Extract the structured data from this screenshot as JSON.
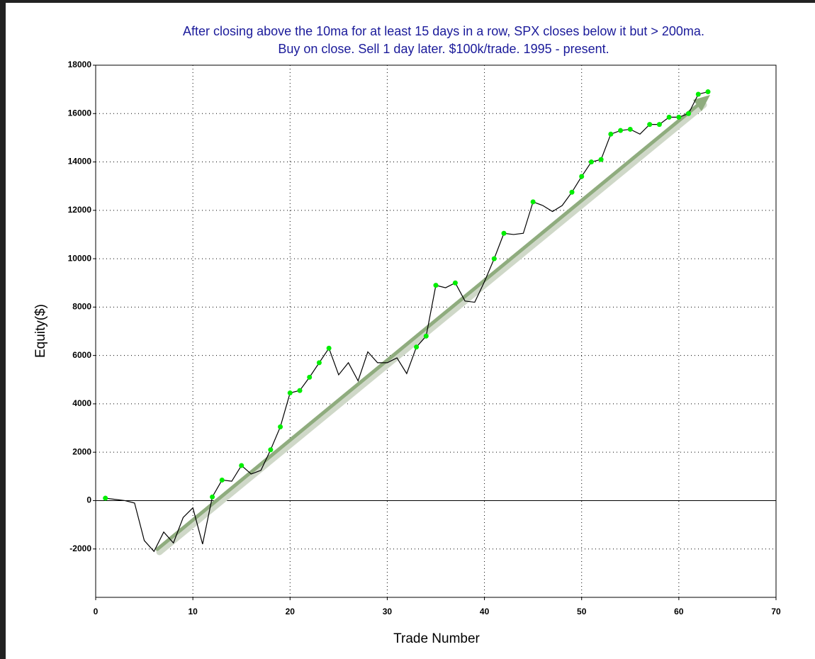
{
  "chart_data": {
    "type": "line",
    "title": "After closing above the 10ma for at least 15 days in a row, SPX closes below it but > 200ma.",
    "subtitle": "Buy on close. Sell 1 day later. $100k/trade. 1995 - present.",
    "x_label": "Trade Number",
    "y_label": "Equity($)",
    "x": [
      1,
      2,
      3,
      4,
      5,
      6,
      7,
      8,
      9,
      10,
      11,
      12,
      13,
      14,
      15,
      16,
      17,
      18,
      19,
      20,
      21,
      22,
      23,
      24,
      25,
      26,
      27,
      28,
      29,
      30,
      31,
      32,
      33,
      34,
      35,
      36,
      37,
      38,
      39,
      40,
      41,
      42,
      43,
      44,
      45,
      46,
      47,
      48,
      49,
      50,
      51,
      52,
      53,
      54,
      55,
      56,
      57,
      58,
      59,
      60,
      61,
      62,
      63
    ],
    "series": [
      {
        "color": "#000000",
        "marker_color": "#00ee00",
        "values": [
          100,
          50,
          0,
          -100,
          -1650,
          -2100,
          -1300,
          -1750,
          -700,
          -300,
          -1800,
          150,
          850,
          800,
          1450,
          1100,
          1250,
          2100,
          3050,
          4450,
          4550,
          5100,
          5700,
          6300,
          5200,
          5700,
          4950,
          6150,
          5700,
          5700,
          5900,
          5250,
          6350,
          6800,
          8900,
          8800,
          9000,
          8250,
          8200,
          9050,
          10000,
          11050,
          11000,
          11050,
          12350,
          12200,
          11950,
          12200,
          12750,
          13400,
          14000,
          14100,
          15150,
          15300,
          15350,
          15150,
          15550,
          15550,
          15850,
          15850,
          16000,
          16800,
          16900
        ],
        "markers": [
          true,
          false,
          false,
          false,
          false,
          false,
          false,
          false,
          false,
          false,
          false,
          true,
          true,
          false,
          true,
          false,
          false,
          true,
          true,
          true,
          true,
          true,
          true,
          true,
          false,
          false,
          false,
          false,
          false,
          false,
          false,
          false,
          true,
          true,
          true,
          false,
          true,
          false,
          false,
          false,
          true,
          true,
          false,
          false,
          true,
          false,
          false,
          false,
          true,
          true,
          true,
          true,
          true,
          true,
          true,
          false,
          true,
          true,
          true,
          true,
          true,
          true,
          true
        ]
      }
    ],
    "xlim": [
      0,
      70
    ],
    "xticks": [
      0,
      10,
      20,
      30,
      40,
      50,
      60,
      70
    ],
    "ylim": [
      -4000,
      18000
    ],
    "yticks": [
      -2000,
      0,
      2000,
      4000,
      6000,
      8000,
      10000,
      12000,
      14000,
      16000,
      18000
    ],
    "grid": true
  }
}
